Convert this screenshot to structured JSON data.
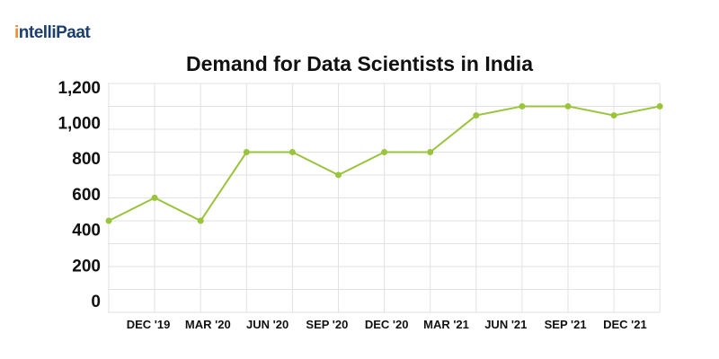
{
  "brand": {
    "logo_text": "intelliPaat"
  },
  "chart_data": {
    "type": "line",
    "title": "Demand for Data Scientists in India",
    "xlabel": "",
    "ylabel": "",
    "x_tick_labels": [
      "DEC '19",
      "MAR '20",
      "JUN '20",
      "SEP '20",
      "DEC '20",
      "MAR '21",
      "JUN '21",
      "SEP '21",
      "DEC '21"
    ],
    "values": [
      533,
      667,
      533,
      933,
      933,
      800,
      933,
      933,
      1147,
      1200,
      1200,
      1147,
      1200
    ],
    "y_tick_labels": [
      "0",
      "200",
      "400",
      "600",
      "800",
      "1,000",
      "1,200"
    ],
    "ylim": [
      0,
      1333
    ],
    "grid": true,
    "line_color": "#9ac43c",
    "grid_color": "#e2e2e2"
  }
}
